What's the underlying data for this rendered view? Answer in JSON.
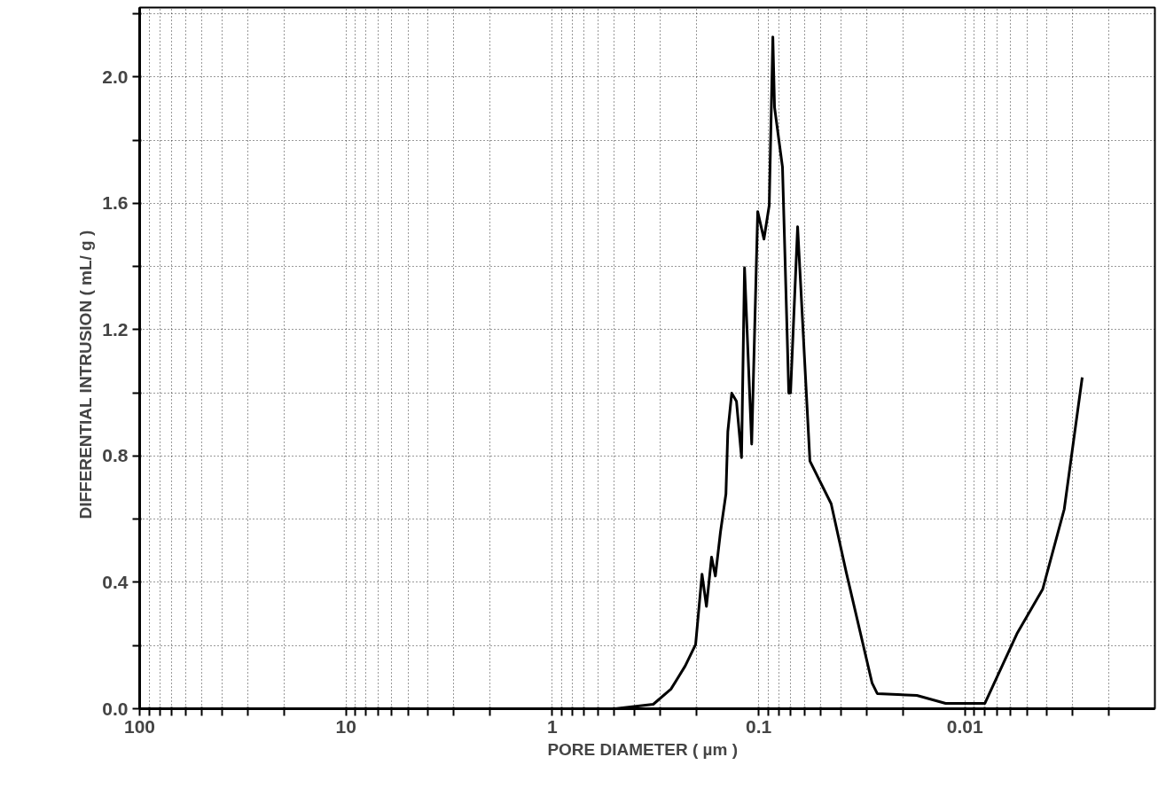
{
  "chart_data": {
    "type": "line",
    "xlabel": "PORE  DIAMETER  ( µm )",
    "ylabel": "DIFFERENTIAL     INTRUSION    ( mL/ g )",
    "log": "x",
    "xlim": [
      100,
      0.0012
    ],
    "ylim": [
      0,
      2.22
    ],
    "xticks": [
      {
        "value": 100,
        "label": "100"
      },
      {
        "value": 90,
        "label": null
      },
      {
        "value": 80,
        "label": null
      },
      {
        "value": 70,
        "label": null
      },
      {
        "value": 60,
        "label": null
      },
      {
        "value": 50,
        "label": null
      },
      {
        "value": 40,
        "label": null
      },
      {
        "value": 30,
        "label": null
      },
      {
        "value": 20,
        "label": null
      },
      {
        "value": 10,
        "label": "10"
      },
      {
        "value": 9,
        "label": null
      },
      {
        "value": 8,
        "label": null
      },
      {
        "value": 7,
        "label": null
      },
      {
        "value": 6,
        "label": null
      },
      {
        "value": 5,
        "label": null
      },
      {
        "value": 4,
        "label": null
      },
      {
        "value": 3,
        "label": null
      },
      {
        "value": 2,
        "label": null
      },
      {
        "value": 1,
        "label": "1"
      },
      {
        "value": 0.9,
        "label": null
      },
      {
        "value": 0.8,
        "label": null
      },
      {
        "value": 0.7,
        "label": null
      },
      {
        "value": 0.6,
        "label": null
      },
      {
        "value": 0.5,
        "label": null
      },
      {
        "value": 0.4,
        "label": null
      },
      {
        "value": 0.3,
        "label": null
      },
      {
        "value": 0.2,
        "label": null
      },
      {
        "value": 0.1,
        "label": "0.1"
      },
      {
        "value": 0.09,
        "label": null
      },
      {
        "value": 0.08,
        "label": null
      },
      {
        "value": 0.07,
        "label": null
      },
      {
        "value": 0.06,
        "label": null
      },
      {
        "value": 0.05,
        "label": null
      },
      {
        "value": 0.04,
        "label": null
      },
      {
        "value": 0.03,
        "label": null
      },
      {
        "value": 0.02,
        "label": null
      },
      {
        "value": 0.01,
        "label": "0.01"
      },
      {
        "value": 0.009,
        "label": null
      },
      {
        "value": 0.008,
        "label": null
      },
      {
        "value": 0.007,
        "label": null
      },
      {
        "value": 0.006,
        "label": null
      },
      {
        "value": 0.005,
        "label": null
      },
      {
        "value": 0.004,
        "label": null
      },
      {
        "value": 0.003,
        "label": null
      },
      {
        "value": 0.002,
        "label": null
      }
    ],
    "yticks": [
      {
        "value": 0,
        "label": "0.0"
      },
      {
        "value": 0.2,
        "label": null
      },
      {
        "value": 0.4,
        "label": "0.4"
      },
      {
        "value": 0.6,
        "label": null
      },
      {
        "value": 0.8,
        "label": "0.8"
      },
      {
        "value": 1.0,
        "label": null
      },
      {
        "value": 1.2,
        "label": "1.2"
      },
      {
        "value": 1.4,
        "label": null
      },
      {
        "value": 1.6,
        "label": "1.6"
      },
      {
        "value": 1.8,
        "label": null
      },
      {
        "value": 2.0,
        "label": "2.0"
      },
      {
        "value": 2.2,
        "label": null
      }
    ],
    "grid": true,
    "marker": "none",
    "line_style": "solid",
    "series": [
      {
        "color": "#000000",
        "x": [
          100,
          1,
          0.6,
          0.496,
          0.324,
          0.266,
          0.227,
          0.202,
          0.188,
          0.179,
          0.169,
          0.162,
          0.153,
          0.144,
          0.141,
          0.135,
          0.128,
          0.121,
          0.117,
          0.108,
          0.101,
          0.0942,
          0.0888,
          0.0853,
          0.0837,
          0.0766,
          0.0714,
          0.07,
          0.0647,
          0.0564,
          0.0445,
          0.0376,
          0.0282,
          0.0266,
          0.0171,
          0.0124,
          0.008,
          0.0056,
          0.0042,
          0.0033,
          0.0027
        ],
        "values": [
          0,
          0,
          0,
          0.0,
          0.014,
          0.062,
          0.135,
          0.203,
          0.426,
          0.324,
          0.48,
          0.42,
          0.56,
          0.68,
          0.877,
          0.999,
          0.973,
          0.795,
          1.396,
          0.838,
          1.574,
          1.487,
          1.594,
          2.127,
          1.904,
          1.715,
          0.999,
          1.0,
          1.526,
          0.784,
          0.649,
          0.432,
          0.082,
          0.048,
          0.042,
          0.017,
          0.017,
          0.237,
          0.378,
          0.632,
          1.049
        ]
      }
    ]
  }
}
